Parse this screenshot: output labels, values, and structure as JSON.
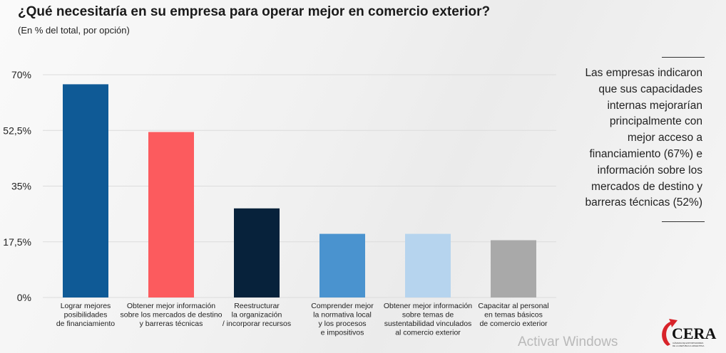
{
  "header": {
    "title": "¿Qué necesitaría en su empresa para operar mejor en comercio exterior?",
    "subtitle": "(En % del total, por opción)"
  },
  "chart_data": {
    "type": "bar",
    "title": "¿Qué necesitaría en su empresa para operar mejor en comercio exterior?",
    "subtitle": "(En % del total, por opción)",
    "categories": [
      [
        "Lograr mejores",
        "posibilidades",
        "de financiamiento"
      ],
      [
        "Obtener mejor información",
        "sobre los mercados de destino",
        "y barreras técnicas"
      ],
      [
        "Reestructurar",
        "la organización",
        "/ incorporar recursos"
      ],
      [
        "Comprender mejor",
        "la normativa local",
        "y los procesos",
        "e impositivos"
      ],
      [
        "Obtener mejor información",
        "sobre temas de",
        "sustentabilidad vinculados",
        "al comercio exterior"
      ],
      [
        "Capacitar al personal",
        "en temas básicos",
        "de comercio exterior"
      ]
    ],
    "values": [
      67,
      52,
      28,
      20,
      20,
      18
    ],
    "colors": [
      "#0f5a96",
      "#fc5b5e",
      "#07223b",
      "#4a93cf",
      "#b6d4ee",
      "#a9a9a9"
    ],
    "yticks": [
      "0%",
      "17,5%",
      "35%",
      "52,5%",
      "70%"
    ],
    "ytick_values": [
      0,
      17.5,
      35,
      52.5,
      70
    ],
    "ylim": [
      0,
      70
    ],
    "grid": true
  },
  "side_note": {
    "lines": [
      "Las empresas indicaron",
      "que sus capacidades",
      "internas  mejorarían",
      "principalmente con",
      "mejor acceso a",
      "financiamiento (67%) e",
      "información sobre los",
      "mercados de destino y",
      "barreras técnicas (52%)"
    ]
  },
  "watermark": "Activar Windows",
  "logo": {
    "text": "CERA",
    "subtext": "CÁMARA DE EXPORTADORES DE LA REPÚBLICA ARGENTINA",
    "color": "#d8232a"
  }
}
